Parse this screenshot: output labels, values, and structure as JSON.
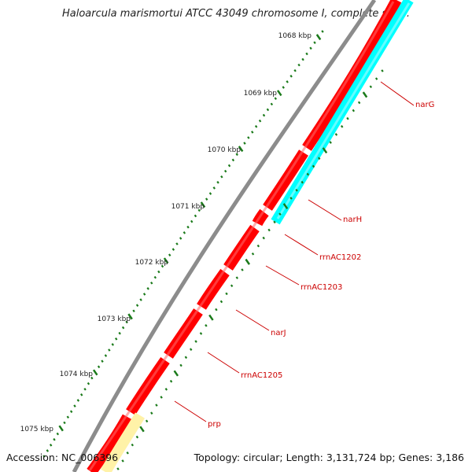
{
  "title": "Haloarcula marismortui ATCC 43049 chromosome I, complete seq...",
  "footer": {
    "accession_label": "Accession:",
    "accession_value": "NC_006396",
    "topology_label": "Topology:",
    "topology_value": "circular; Length: 3,131,724 bp; Genes: 3,186"
  },
  "colors": {
    "backbone": "#8c8c8c",
    "gene_red": "#ff0000",
    "gene_dark_red": "#d40000",
    "gene_cyan": "#00ffff",
    "gene_yellow": "#fff2a8",
    "tick_green": "#1a7a1a",
    "label_red": "#cc0000"
  },
  "ticks": [
    {
      "label": "1068 kbp"
    },
    {
      "label": "1069 kbp"
    },
    {
      "label": "1070 kbp"
    },
    {
      "label": "1071 kbp"
    },
    {
      "label": "1072 kbp"
    },
    {
      "label": "1073 kbp"
    },
    {
      "label": "1074 kbp"
    },
    {
      "label": "1075 kbp"
    }
  ],
  "features": [
    {
      "label": "narG"
    },
    {
      "label": "narH"
    },
    {
      "label": "rrnAC1202"
    },
    {
      "label": "rrnAC1203"
    },
    {
      "label": "narJ"
    },
    {
      "label": "rrnAC1205"
    },
    {
      "label": "prp"
    }
  ]
}
